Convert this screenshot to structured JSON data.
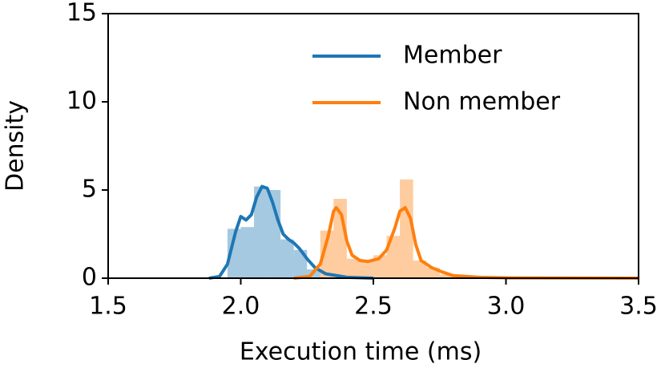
{
  "chart_data": {
    "type": "histogram-kde",
    "xlabel": "Execution time (ms)",
    "ylabel": "Density",
    "xlim": [
      1.5,
      3.5
    ],
    "ylim": [
      0,
      15
    ],
    "xticks": [
      1.5,
      {
        "value": 2,
        "label": "2.0"
      },
      2.5,
      {
        "value": 3,
        "label": "3.0"
      },
      3.5
    ],
    "yticks": [
      0,
      5,
      10,
      15
    ],
    "legend": "upper right",
    "histograms": [
      {
        "color": "#1f77b4",
        "bins": [
          1.95,
          2.0,
          2.05,
          2.1,
          2.15,
          2.2,
          2.25,
          2.3
        ],
        "values": [
          2.8,
          2.9,
          5.2,
          5.0,
          2.2,
          1.6,
          0.5
        ]
      },
      {
        "color": "#ff7f0e",
        "bins": [
          2.3,
          2.35,
          2.4,
          2.45,
          2.5,
          2.55,
          2.6,
          2.65,
          2.7,
          2.75,
          2.8
        ],
        "values": [
          2.7,
          4.5,
          1.1,
          1.0,
          1.3,
          2.4,
          5.6,
          1.0,
          0.6,
          0.2
        ]
      }
    ],
    "series": [
      {
        "name": "Member",
        "color": "#1f77b4",
        "x": [
          1.88,
          1.92,
          1.95,
          1.98,
          2.0,
          2.02,
          2.04,
          2.06,
          2.08,
          2.1,
          2.12,
          2.14,
          2.16,
          2.18,
          2.2,
          2.22,
          2.25,
          2.28,
          2.32,
          2.4,
          2.5
        ],
        "values": [
          0,
          0.1,
          0.8,
          2.6,
          3.5,
          3.3,
          3.6,
          4.6,
          5.2,
          5.1,
          4.3,
          3.3,
          2.5,
          2.2,
          2.0,
          1.7,
          1.1,
          0.6,
          0.25,
          0.05,
          0
        ]
      },
      {
        "name": "Non member",
        "color": "#ff7f0e",
        "x": [
          2.2,
          2.26,
          2.3,
          2.33,
          2.35,
          2.36,
          2.38,
          2.4,
          2.42,
          2.45,
          2.48,
          2.52,
          2.55,
          2.58,
          2.6,
          2.62,
          2.64,
          2.66,
          2.68,
          2.72,
          2.76,
          2.8,
          2.9,
          3.0,
          3.5
        ],
        "values": [
          0,
          0.1,
          0.8,
          2.4,
          3.8,
          4.0,
          3.6,
          2.1,
          1.3,
          1.0,
          0.95,
          1.1,
          1.6,
          2.8,
          3.8,
          4.0,
          3.4,
          1.9,
          1.0,
          0.6,
          0.35,
          0.15,
          0.05,
          0.02,
          0
        ]
      }
    ]
  }
}
